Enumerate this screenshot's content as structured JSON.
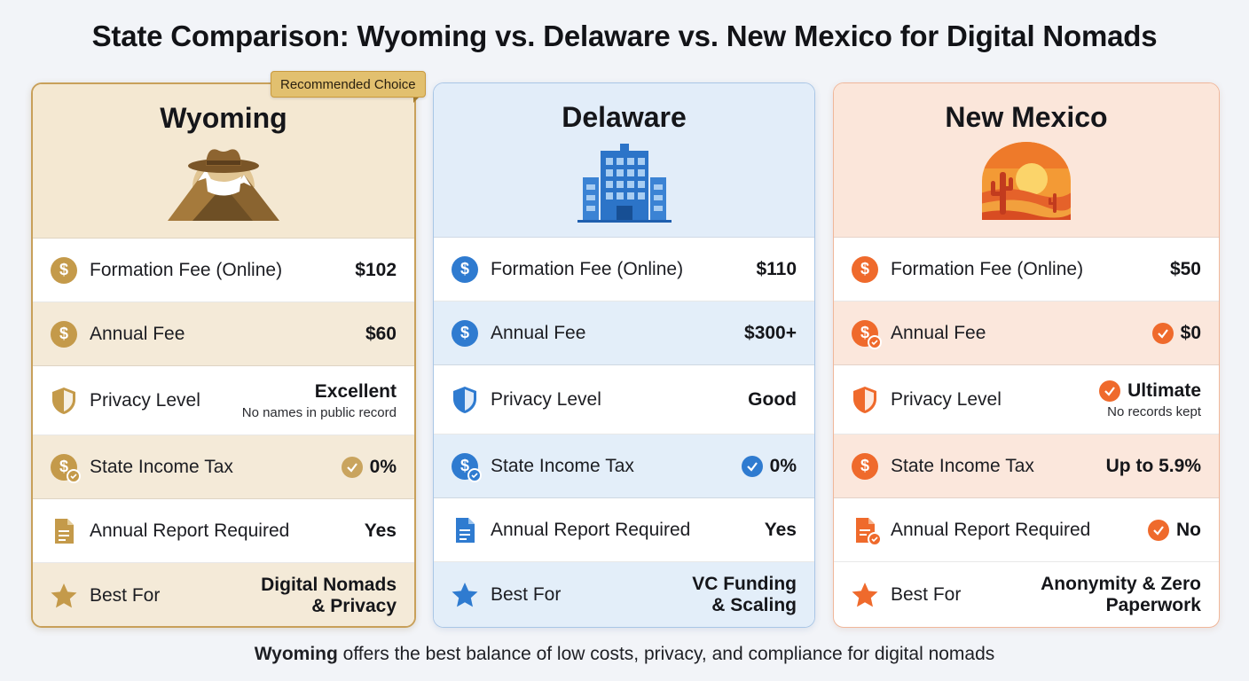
{
  "title": "State Comparison: Wyoming vs. Delaware vs. New Mexico for Digital Nomads",
  "badge": "Recommended Choice",
  "colors": {
    "wyoming": "#c49a4a",
    "delaware": "#2f7bd0",
    "new_mexico": "#ef6a2c"
  },
  "cards": [
    {
      "state": "Wyoming",
      "illustration": "cowboy-hat-mountains-icon",
      "rows": [
        {
          "label": "Formation Fee (Online)",
          "value": "$102",
          "icon": "dollar-coin-icon"
        },
        {
          "label": "Annual Fee",
          "value": "$60",
          "icon": "dollar-coin-icon"
        },
        {
          "label": "Privacy Level",
          "value": "Excellent",
          "sub": "No names in public record",
          "icon": "shield-icon"
        },
        {
          "label": "State Income Tax",
          "value": "0%",
          "icon": "dollar-check-icon",
          "checked": true
        },
        {
          "label": "Annual Report Required",
          "value": "Yes",
          "icon": "document-icon"
        },
        {
          "label": "Best For",
          "value_line1": "Digital Nomads",
          "value_line2": "& Privacy",
          "icon": "star-icon"
        }
      ]
    },
    {
      "state": "Delaware",
      "illustration": "office-building-icon",
      "rows": [
        {
          "label": "Formation Fee (Online)",
          "value": "$110",
          "icon": "dollar-coin-icon"
        },
        {
          "label": "Annual Fee",
          "value": "$300+",
          "icon": "dollar-coin-icon"
        },
        {
          "label": "Privacy Level",
          "value": "Good",
          "icon": "shield-icon"
        },
        {
          "label": "State Income Tax",
          "value": "0%",
          "icon": "dollar-check-icon",
          "checked": true
        },
        {
          "label": "Annual Report Required",
          "value": "Yes",
          "icon": "document-icon"
        },
        {
          "label": "Best For",
          "value_line1": "VC Funding",
          "value_line2": "& Scaling",
          "icon": "star-icon"
        }
      ]
    },
    {
      "state": "New Mexico",
      "illustration": "desert-sunset-cactus-icon",
      "rows": [
        {
          "label": "Formation Fee (Online)",
          "value": "$50",
          "icon": "dollar-coin-icon"
        },
        {
          "label": "Annual Fee",
          "value": "$0",
          "icon": "dollar-check-icon",
          "checked": true
        },
        {
          "label": "Privacy Level",
          "value": "Ultimate",
          "sub": "No records kept",
          "icon": "shield-icon",
          "checked": true
        },
        {
          "label": "State Income Tax",
          "value": "Up to 5.9%",
          "icon": "dollar-coin-icon"
        },
        {
          "label": "Annual Report Required",
          "value": "No",
          "icon": "document-check-icon",
          "checked": true
        },
        {
          "label": "Best For",
          "value_line1": "Anonymity & Zero",
          "value_line2": "Paperwork",
          "icon": "star-icon"
        }
      ]
    }
  ],
  "footer": {
    "bold": "Wyoming",
    "rest": " offers the best balance of low costs, privacy, and compliance for digital nomads"
  }
}
